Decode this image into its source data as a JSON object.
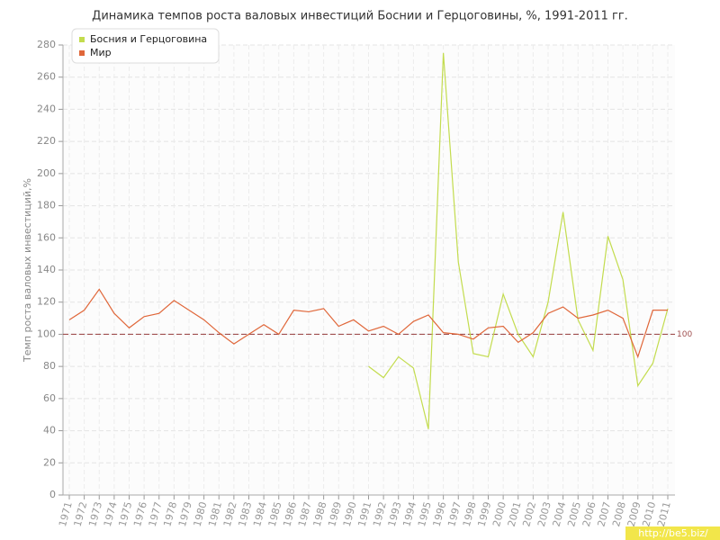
{
  "chart_data": {
    "type": "line",
    "title": "Динамика темпов роста валовых инвестиций Боснии и Герцоговины, %, 1991-2011 гг.",
    "y_label": "Темп роста валовых инвестиций,%",
    "categories": [
      "1971",
      "1972",
      "1973",
      "1974",
      "1975",
      "1976",
      "1977",
      "1978",
      "1979",
      "1980",
      "1981",
      "1982",
      "1983",
      "1984",
      "1985",
      "1986",
      "1987",
      "1988",
      "1989",
      "1990",
      "1991",
      "1992",
      "1993",
      "1994",
      "1995",
      "1996",
      "1997",
      "1998",
      "1999",
      "2000",
      "2001",
      "2002",
      "2003",
      "2004",
      "2005",
      "2006",
      "2007",
      "2008",
      "2009",
      "2010",
      "2011"
    ],
    "series": [
      {
        "name": "Босния и Герцоговина",
        "color": "#c3dc4e",
        "values": [
          null,
          null,
          null,
          null,
          null,
          null,
          null,
          null,
          null,
          null,
          null,
          null,
          null,
          null,
          null,
          null,
          null,
          null,
          null,
          null,
          80,
          73,
          86,
          79,
          41,
          275,
          145,
          88,
          86,
          125,
          100,
          86,
          120,
          176,
          109,
          90,
          161,
          134,
          68,
          82,
          116
        ]
      },
      {
        "name": "Мир",
        "color": "#e0673a",
        "values": [
          109,
          115,
          128,
          113,
          104,
          111,
          113,
          121,
          115,
          109,
          101,
          94,
          100,
          106,
          100,
          115,
          114,
          116,
          105,
          109,
          102,
          105,
          100,
          108,
          112,
          101,
          100,
          97,
          104,
          105,
          95,
          101,
          113,
          117,
          110,
          112,
          115,
          110,
          86,
          115,
          115
        ]
      }
    ],
    "ylim": [
      0,
      280
    ],
    "yticks": [
      0,
      20,
      40,
      60,
      80,
      100,
      120,
      140,
      160,
      180,
      200,
      220,
      240,
      260,
      280
    ],
    "grid": true,
    "legend": "top-left",
    "reference_line": 100,
    "reference_color": "#a05050",
    "watermark": "http://be5.biz/"
  }
}
